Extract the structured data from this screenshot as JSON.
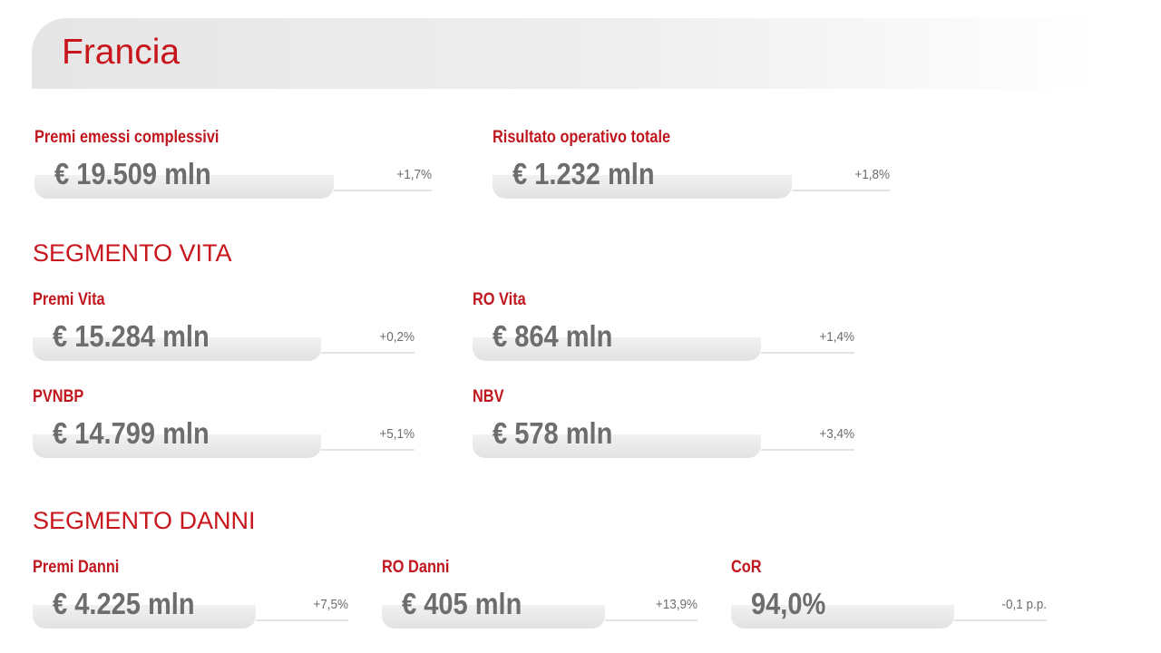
{
  "header": {
    "title": "Francia"
  },
  "highlights": [
    {
      "label": "Premi emessi complessivi",
      "value": "€ 19.509 mln",
      "change": "+1,7%"
    },
    {
      "label": "Risultato operativo totale",
      "value": "€ 1.232 mln",
      "change": "+1,8%"
    }
  ],
  "sections": [
    {
      "title": "SEGMENTO VITA",
      "items": [
        {
          "label": "Premi Vita",
          "value": "€ 15.284 mln",
          "change": "+0,2%"
        },
        {
          "label": "RO Vita",
          "value": "€ 864 mln",
          "change": "+1,4%"
        },
        {
          "label": "PVNBP",
          "value": "€ 14.799 mln",
          "change": "+5,1%"
        },
        {
          "label": "NBV",
          "value": "€ 578 mln",
          "change": "+3,4%"
        }
      ]
    },
    {
      "title": "SEGMENTO DANNI",
      "items": [
        {
          "label": "Premi Danni",
          "value": "€ 4.225 mln",
          "change": "+7,5%"
        },
        {
          "label": "RO Danni",
          "value": "€ 405 mln",
          "change": "+13,9%"
        },
        {
          "label": "CoR",
          "value": "94,0%",
          "change": "-0,1 p.p."
        }
      ]
    }
  ]
}
